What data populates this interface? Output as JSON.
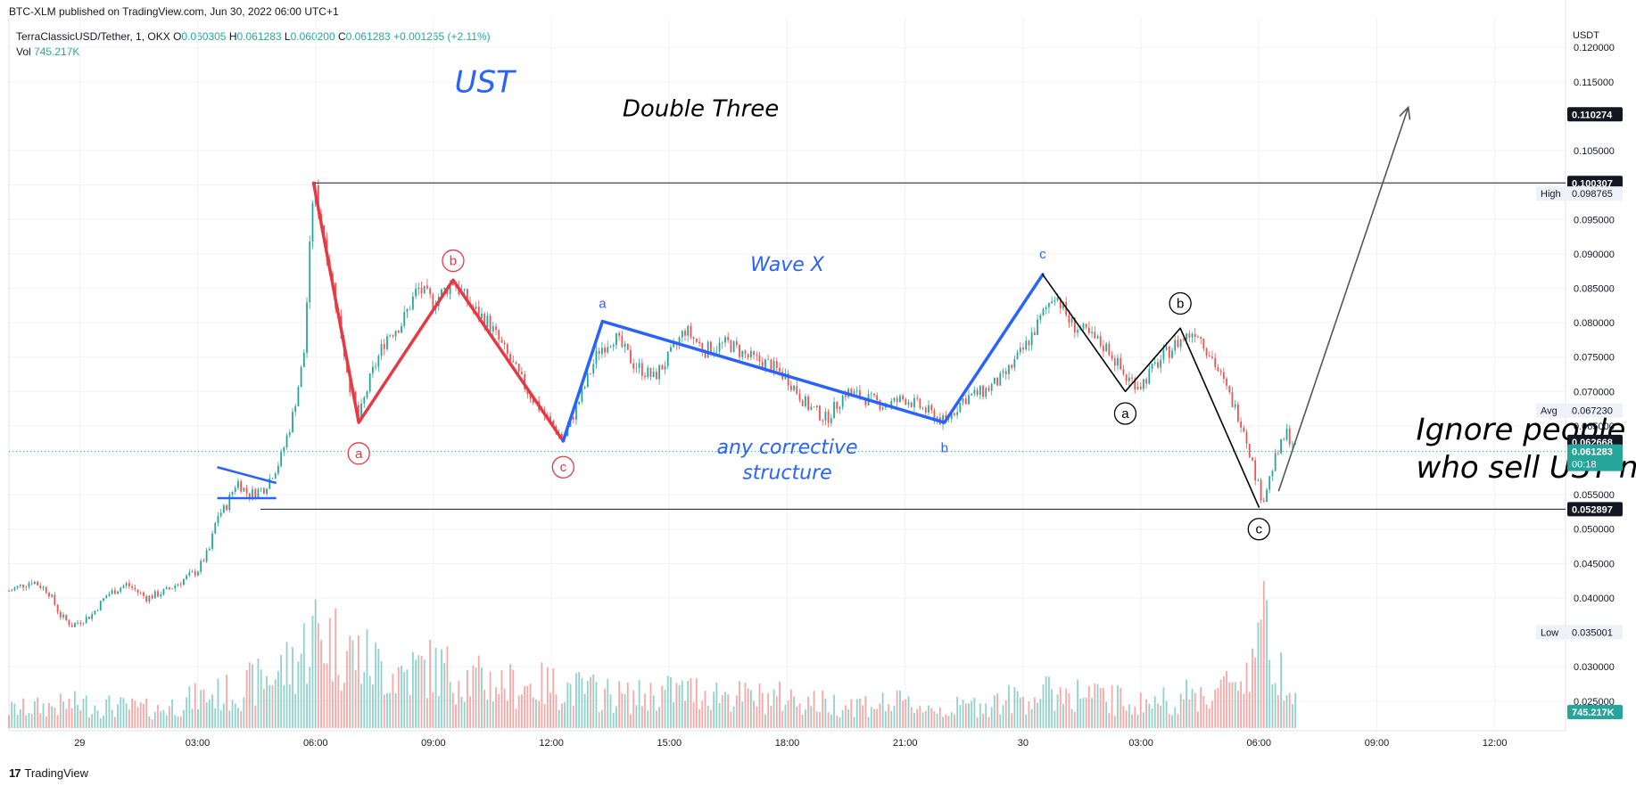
{
  "header": {
    "published": "BTC-XLM published on TradingView.com, Jun 30, 2022 06:00 UTC+1"
  },
  "legend": {
    "symbol": "TerraClassicUSD/Tether, 1, OKX",
    "o_label": "O",
    "o_value": "0.060305",
    "h_label": "H",
    "h_value": "0.061283",
    "l_label": "L",
    "l_value": "0.060200",
    "c_label": "C",
    "c_value": "0.061283",
    "change": "+0.001265 (+2.11%)",
    "vol_label": "Vol",
    "vol_value": "745.217K"
  },
  "price_axis": {
    "unit": "USDT"
  },
  "footer": {
    "brand": "TradingView",
    "logo": "17"
  },
  "colors": {
    "up": "#26a69a",
    "down": "#ef5350",
    "red_wave": "#e53945",
    "blue_wave": "#2962ff",
    "black_wave": "#000000",
    "axis_label_bg": "#131722"
  },
  "chart_data": {
    "type": "candlestick",
    "ylim": [
      0.0207,
      0.1243
    ],
    "ylabel": "USDT",
    "y_ticks": [
      "0.120000",
      "0.115000",
      "0.105000",
      "0.100000",
      "0.095000",
      "0.090000",
      "0.085000",
      "0.080000",
      "0.075000",
      "0.070000",
      "0.065000",
      "0.055000",
      "0.050000",
      "0.045000",
      "0.040000",
      "0.030000",
      "0.025000"
    ],
    "y_tick_values": [
      0.12,
      0.115,
      0.105,
      0.1,
      0.095,
      0.09,
      0.085,
      0.08,
      0.075,
      0.07,
      0.065,
      0.055,
      0.05,
      0.045,
      0.04,
      0.03,
      0.025
    ],
    "x_ticks": [
      "29",
      "03:00",
      "06:00",
      "09:00",
      "12:00",
      "15:00",
      "18:00",
      "21:00",
      "30",
      "03:00",
      "06:00",
      "09:00",
      "12:00"
    ],
    "x_tick_hours": [
      0,
      3,
      6,
      9,
      12,
      15,
      18,
      21,
      24,
      27,
      30,
      33,
      36
    ],
    "x_range_hours": [
      -1.8,
      37.8
    ],
    "price_path": [
      [
        -1.8,
        0.041
      ],
      [
        -1.2,
        0.0425
      ],
      [
        -0.8,
        0.041
      ],
      [
        -0.5,
        0.0375
      ],
      [
        -0.2,
        0.036
      ],
      [
        0.3,
        0.0375
      ],
      [
        0.7,
        0.0405
      ],
      [
        1.2,
        0.042
      ],
      [
        1.7,
        0.04
      ],
      [
        2.2,
        0.041
      ],
      [
        2.6,
        0.0425
      ],
      [
        3.0,
        0.044
      ],
      [
        3.3,
        0.047
      ],
      [
        3.5,
        0.052
      ],
      [
        3.7,
        0.053
      ],
      [
        4.0,
        0.057
      ],
      [
        4.3,
        0.055
      ],
      [
        4.7,
        0.056
      ],
      [
        5.1,
        0.06
      ],
      [
        5.4,
        0.066
      ],
      [
        5.7,
        0.075
      ],
      [
        5.95,
        0.1003
      ],
      [
        6.3,
        0.09
      ],
      [
        6.6,
        0.08
      ],
      [
        6.9,
        0.07
      ],
      [
        7.1,
        0.066
      ],
      [
        7.4,
        0.072
      ],
      [
        7.8,
        0.078
      ],
      [
        8.2,
        0.08
      ],
      [
        8.6,
        0.085
      ],
      [
        9.0,
        0.083
      ],
      [
        9.5,
        0.086
      ],
      [
        10.0,
        0.082
      ],
      [
        10.4,
        0.08
      ],
      [
        10.9,
        0.075
      ],
      [
        11.4,
        0.07
      ],
      [
        11.9,
        0.066
      ],
      [
        12.3,
        0.063
      ],
      [
        12.8,
        0.07
      ],
      [
        13.2,
        0.076
      ],
      [
        13.6,
        0.078
      ],
      [
        14.1,
        0.074
      ],
      [
        14.6,
        0.072
      ],
      [
        15.0,
        0.075
      ],
      [
        15.4,
        0.079
      ],
      [
        15.9,
        0.076
      ],
      [
        16.5,
        0.077
      ],
      [
        17.0,
        0.075
      ],
      [
        17.5,
        0.074
      ],
      [
        18.0,
        0.072
      ],
      [
        18.5,
        0.068
      ],
      [
        19.0,
        0.066
      ],
      [
        19.5,
        0.07
      ],
      [
        20.0,
        0.069
      ],
      [
        20.5,
        0.068
      ],
      [
        21.0,
        0.069
      ],
      [
        21.6,
        0.067
      ],
      [
        22.0,
        0.0655
      ],
      [
        22.5,
        0.069
      ],
      [
        23.0,
        0.07
      ],
      [
        23.5,
        0.072
      ],
      [
        24.0,
        0.076
      ],
      [
        24.4,
        0.08
      ],
      [
        24.8,
        0.0845
      ],
      [
        25.2,
        0.08
      ],
      [
        25.7,
        0.078
      ],
      [
        26.2,
        0.076
      ],
      [
        26.6,
        0.072
      ],
      [
        27.0,
        0.071
      ],
      [
        27.4,
        0.074
      ],
      [
        27.9,
        0.077
      ],
      [
        28.4,
        0.079
      ],
      [
        28.8,
        0.075
      ],
      [
        29.2,
        0.07
      ],
      [
        29.6,
        0.065
      ],
      [
        29.9,
        0.058
      ],
      [
        30.1,
        0.054
      ],
      [
        30.4,
        0.06
      ],
      [
        30.7,
        0.064
      ],
      [
        31.0,
        0.0612
      ]
    ],
    "volume_path": [
      [
        -1.8,
        0.15
      ],
      [
        0,
        0.2
      ],
      [
        2,
        0.15
      ],
      [
        3,
        0.25
      ],
      [
        4,
        0.3
      ],
      [
        5,
        0.45
      ],
      [
        5.5,
        0.55
      ],
      [
        6,
        0.8
      ],
      [
        7,
        0.6
      ],
      [
        8,
        0.45
      ],
      [
        9,
        0.5
      ],
      [
        10,
        0.4
      ],
      [
        11,
        0.35
      ],
      [
        12,
        0.35
      ],
      [
        13,
        0.3
      ],
      [
        14,
        0.25
      ],
      [
        15,
        0.3
      ],
      [
        16,
        0.3
      ],
      [
        17,
        0.25
      ],
      [
        18,
        0.25
      ],
      [
        19,
        0.2
      ],
      [
        20,
        0.2
      ],
      [
        21,
        0.2
      ],
      [
        22,
        0.15
      ],
      [
        23,
        0.2
      ],
      [
        24,
        0.25
      ],
      [
        25,
        0.3
      ],
      [
        26,
        0.25
      ],
      [
        27,
        0.2
      ],
      [
        28,
        0.25
      ],
      [
        29,
        0.3
      ],
      [
        29.8,
        0.5
      ],
      [
        30.0,
        1.0
      ],
      [
        30.3,
        0.6
      ],
      [
        31.0,
        0.35
      ]
    ],
    "price_labels": [
      {
        "value": 0.110274,
        "text": "0.110274",
        "style": "dark"
      },
      {
        "value": 0.100307,
        "text": "0.100307",
        "style": "dark"
      },
      {
        "value": 0.098765,
        "text": "0.098765",
        "style": "light",
        "tag": "High"
      },
      {
        "value": 0.06723,
        "text": "0.067230",
        "style": "light",
        "tag": "Avg"
      },
      {
        "value": 0.062668,
        "text": "0.062668",
        "style": "dark"
      },
      {
        "value": 0.061283,
        "text": "0.061283",
        "style": "green",
        "sub": "00:18"
      },
      {
        "value": 0.052897,
        "text": "0.052897",
        "style": "dark"
      },
      {
        "value": 0.035001,
        "text": "0.035001",
        "style": "light",
        "tag": "Low"
      }
    ],
    "volume_label": "745.217K",
    "horizontal_lines": [
      {
        "value": 0.100307,
        "from_hour": 5.95
      },
      {
        "value": 0.052897,
        "from_hour": 4.6
      }
    ],
    "dotted_line_value": 0.061283,
    "red_wave": [
      [
        5.95,
        0.1003
      ],
      [
        7.1,
        0.0655
      ],
      [
        9.5,
        0.0862
      ],
      [
        12.3,
        0.0628
      ]
    ],
    "blue_triangle": [
      [
        3.5,
        0.059
      ],
      [
        5.0,
        0.0567
      ],
      [
        3.5,
        0.0545
      ],
      [
        5.0,
        0.0545
      ]
    ],
    "blue_wave": [
      [
        12.3,
        0.0628
      ],
      [
        13.3,
        0.0802
      ],
      [
        22.0,
        0.0655
      ],
      [
        24.5,
        0.087
      ]
    ],
    "black_wave": [
      [
        24.5,
        0.087
      ],
      [
        26.6,
        0.07
      ],
      [
        28.0,
        0.0792
      ],
      [
        30.0,
        0.0532
      ]
    ],
    "arrow": {
      "from": [
        30.5,
        0.0555
      ],
      "to": [
        33.8,
        0.1113
      ]
    },
    "annotations": [
      {
        "text": "UST",
        "hour": 10.3,
        "value": 0.1135,
        "size": 34,
        "color": "#2962ff"
      },
      {
        "text": "Double Three",
        "hour": 15.8,
        "value": 0.11,
        "size": 26,
        "color": "#000000"
      },
      {
        "text": "Wave X",
        "hour": 18.0,
        "value": 0.0875,
        "size": 22,
        "color": "#2962ff"
      },
      {
        "text": "any corrective",
        "hour": 18.0,
        "value": 0.061,
        "size": 22,
        "color": "#2962ff"
      },
      {
        "text": "structure",
        "hour": 18.0,
        "value": 0.0573,
        "size": 22,
        "color": "#2962ff"
      },
      {
        "text": "Ignore people",
        "hour": 34.0,
        "value": 0.063,
        "size": 34,
        "color": "#000000"
      },
      {
        "text": "who sell UST now.",
        "hour": 34.0,
        "value": 0.0575,
        "size": 34,
        "color": "#000000"
      }
    ],
    "wave_labels": [
      {
        "text": "a",
        "hour": 7.1,
        "value": 0.061,
        "color": "#e53945",
        "circle": true
      },
      {
        "text": "b",
        "hour": 9.5,
        "value": 0.089,
        "color": "#e53945",
        "circle": true
      },
      {
        "text": "c",
        "hour": 12.3,
        "value": 0.059,
        "color": "#e53945",
        "circle": true
      },
      {
        "text": "a",
        "hour": 13.3,
        "value": 0.0828,
        "color": "#2962ff",
        "circle": false
      },
      {
        "text": "b",
        "hour": 22.0,
        "value": 0.0618,
        "color": "#2962ff",
        "circle": false
      },
      {
        "text": "c",
        "hour": 24.5,
        "value": 0.09,
        "color": "#2962ff",
        "circle": false
      },
      {
        "text": "a",
        "hour": 26.6,
        "value": 0.0668,
        "color": "#000000",
        "circle": true
      },
      {
        "text": "b",
        "hour": 28.0,
        "value": 0.0828,
        "color": "#000000",
        "circle": true
      },
      {
        "text": "c",
        "hour": 30.0,
        "value": 0.05,
        "color": "#000000",
        "circle": true
      }
    ]
  }
}
